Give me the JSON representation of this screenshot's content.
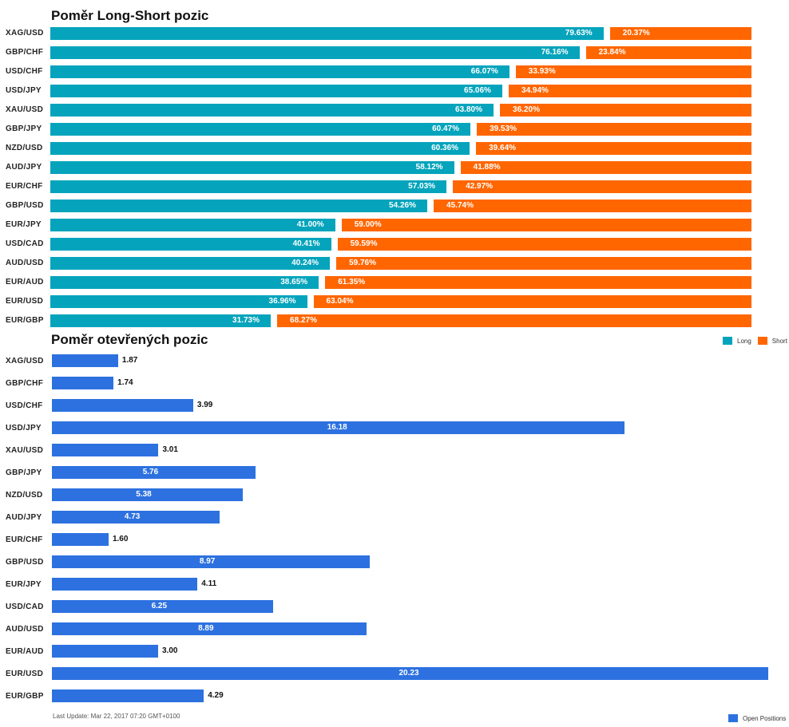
{
  "colors": {
    "long": "#05A4BC",
    "short": "#FF6600",
    "open": "#2D71E0"
  },
  "chart_data": [
    {
      "type": "bar",
      "orientation": "horizontal",
      "stacked": true,
      "title": "Poměr Long-Short pozic",
      "categories": [
        "XAG/USD",
        "GBP/CHF",
        "USD/CHF",
        "USD/JPY",
        "XAU/USD",
        "GBP/JPY",
        "NZD/USD",
        "AUD/JPY",
        "EUR/CHF",
        "GBP/USD",
        "EUR/JPY",
        "USD/CAD",
        "AUD/USD",
        "EUR/AUD",
        "EUR/USD",
        "EUR/GBP"
      ],
      "series": [
        {
          "name": "Long",
          "values": [
            79.63,
            76.16,
            66.07,
            65.06,
            63.8,
            60.47,
            60.36,
            58.12,
            57.03,
            54.26,
            41.0,
            40.41,
            40.24,
            38.65,
            36.96,
            31.73
          ],
          "labels": [
            "79.63%",
            "76.16%",
            "66.07%",
            "65.06%",
            "63.80%",
            "60.47%",
            "60.36%",
            "58.12%",
            "57.03%",
            "54.26%",
            "41.00%",
            "40.41%",
            "40.24%",
            "38.65%",
            "36.96%",
            "31.73%"
          ]
        },
        {
          "name": "Short",
          "values": [
            20.37,
            23.84,
            33.93,
            34.94,
            36.2,
            39.53,
            39.64,
            41.88,
            42.97,
            45.74,
            59.0,
            59.59,
            59.76,
            61.35,
            63.04,
            68.27
          ],
          "labels": [
            "20.37%",
            "23.84%",
            "33.93%",
            "34.94%",
            "36.20%",
            "39.53%",
            "39.64%",
            "41.88%",
            "42.97%",
            "45.74%",
            "59.00%",
            "59.59%",
            "59.76%",
            "61.35%",
            "63.04%",
            "68.27%"
          ]
        }
      ],
      "xlim": [
        0,
        100
      ],
      "legend": "right"
    },
    {
      "type": "bar",
      "orientation": "horizontal",
      "title": "Poměr otevřených pozic",
      "categories": [
        "XAG/USD",
        "GBP/CHF",
        "USD/CHF",
        "USD/JPY",
        "XAU/USD",
        "GBP/JPY",
        "NZD/USD",
        "AUD/JPY",
        "EUR/CHF",
        "GBP/USD",
        "EUR/JPY",
        "USD/CAD",
        "AUD/USD",
        "EUR/AUD",
        "EUR/USD",
        "EUR/GBP"
      ],
      "series": [
        {
          "name": "Open Positions",
          "values": [
            1.87,
            1.74,
            3.99,
            16.18,
            3.01,
            5.76,
            5.38,
            4.73,
            1.6,
            8.97,
            4.11,
            6.25,
            8.89,
            3.0,
            20.23,
            4.29
          ],
          "labels": [
            "1.87",
            "1.74",
            "3.99",
            "16.18",
            "3.01",
            "5.76",
            "5.38",
            "4.73",
            "1.60",
            "8.97",
            "4.11",
            "6.25",
            "8.89",
            "3.00",
            "20.23",
            "4.29"
          ]
        }
      ],
      "legend": "bottom-right",
      "footer": "Last Update: Mar 22, 2017 07:20 GMT+0100"
    }
  ]
}
